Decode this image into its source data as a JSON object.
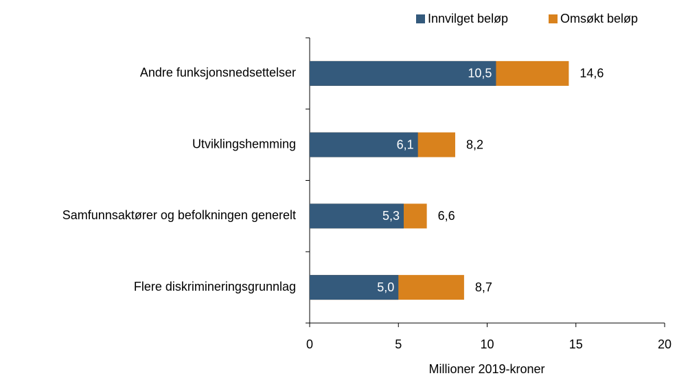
{
  "chart_data": {
    "type": "bar",
    "orientation": "horizontal",
    "overlap": true,
    "categories": [
      "Andre funksjonsnedsettelser",
      "Utviklingshemming",
      "Samfunnsaktører og befolkningen generelt",
      "Flere diskrimineringsgrunnlag"
    ],
    "series": [
      {
        "name": "Innvilget beløp",
        "color": "#345a7c",
        "values": [
          10.5,
          6.1,
          5.3,
          5.0
        ],
        "value_labels": [
          "10,5",
          "6,1",
          "5,3",
          "5,0"
        ]
      },
      {
        "name": "Omsøkt beløp",
        "color": "#d9821d",
        "values": [
          14.6,
          8.2,
          6.6,
          8.7
        ],
        "value_labels": [
          "14,6",
          "8,2",
          "6,6",
          "8,7"
        ]
      }
    ],
    "xlabel": "Millioner 2019-kroner",
    "xlim": [
      0,
      20
    ],
    "xticks": [
      0,
      5,
      10,
      15,
      20
    ],
    "legend": "top-right"
  }
}
